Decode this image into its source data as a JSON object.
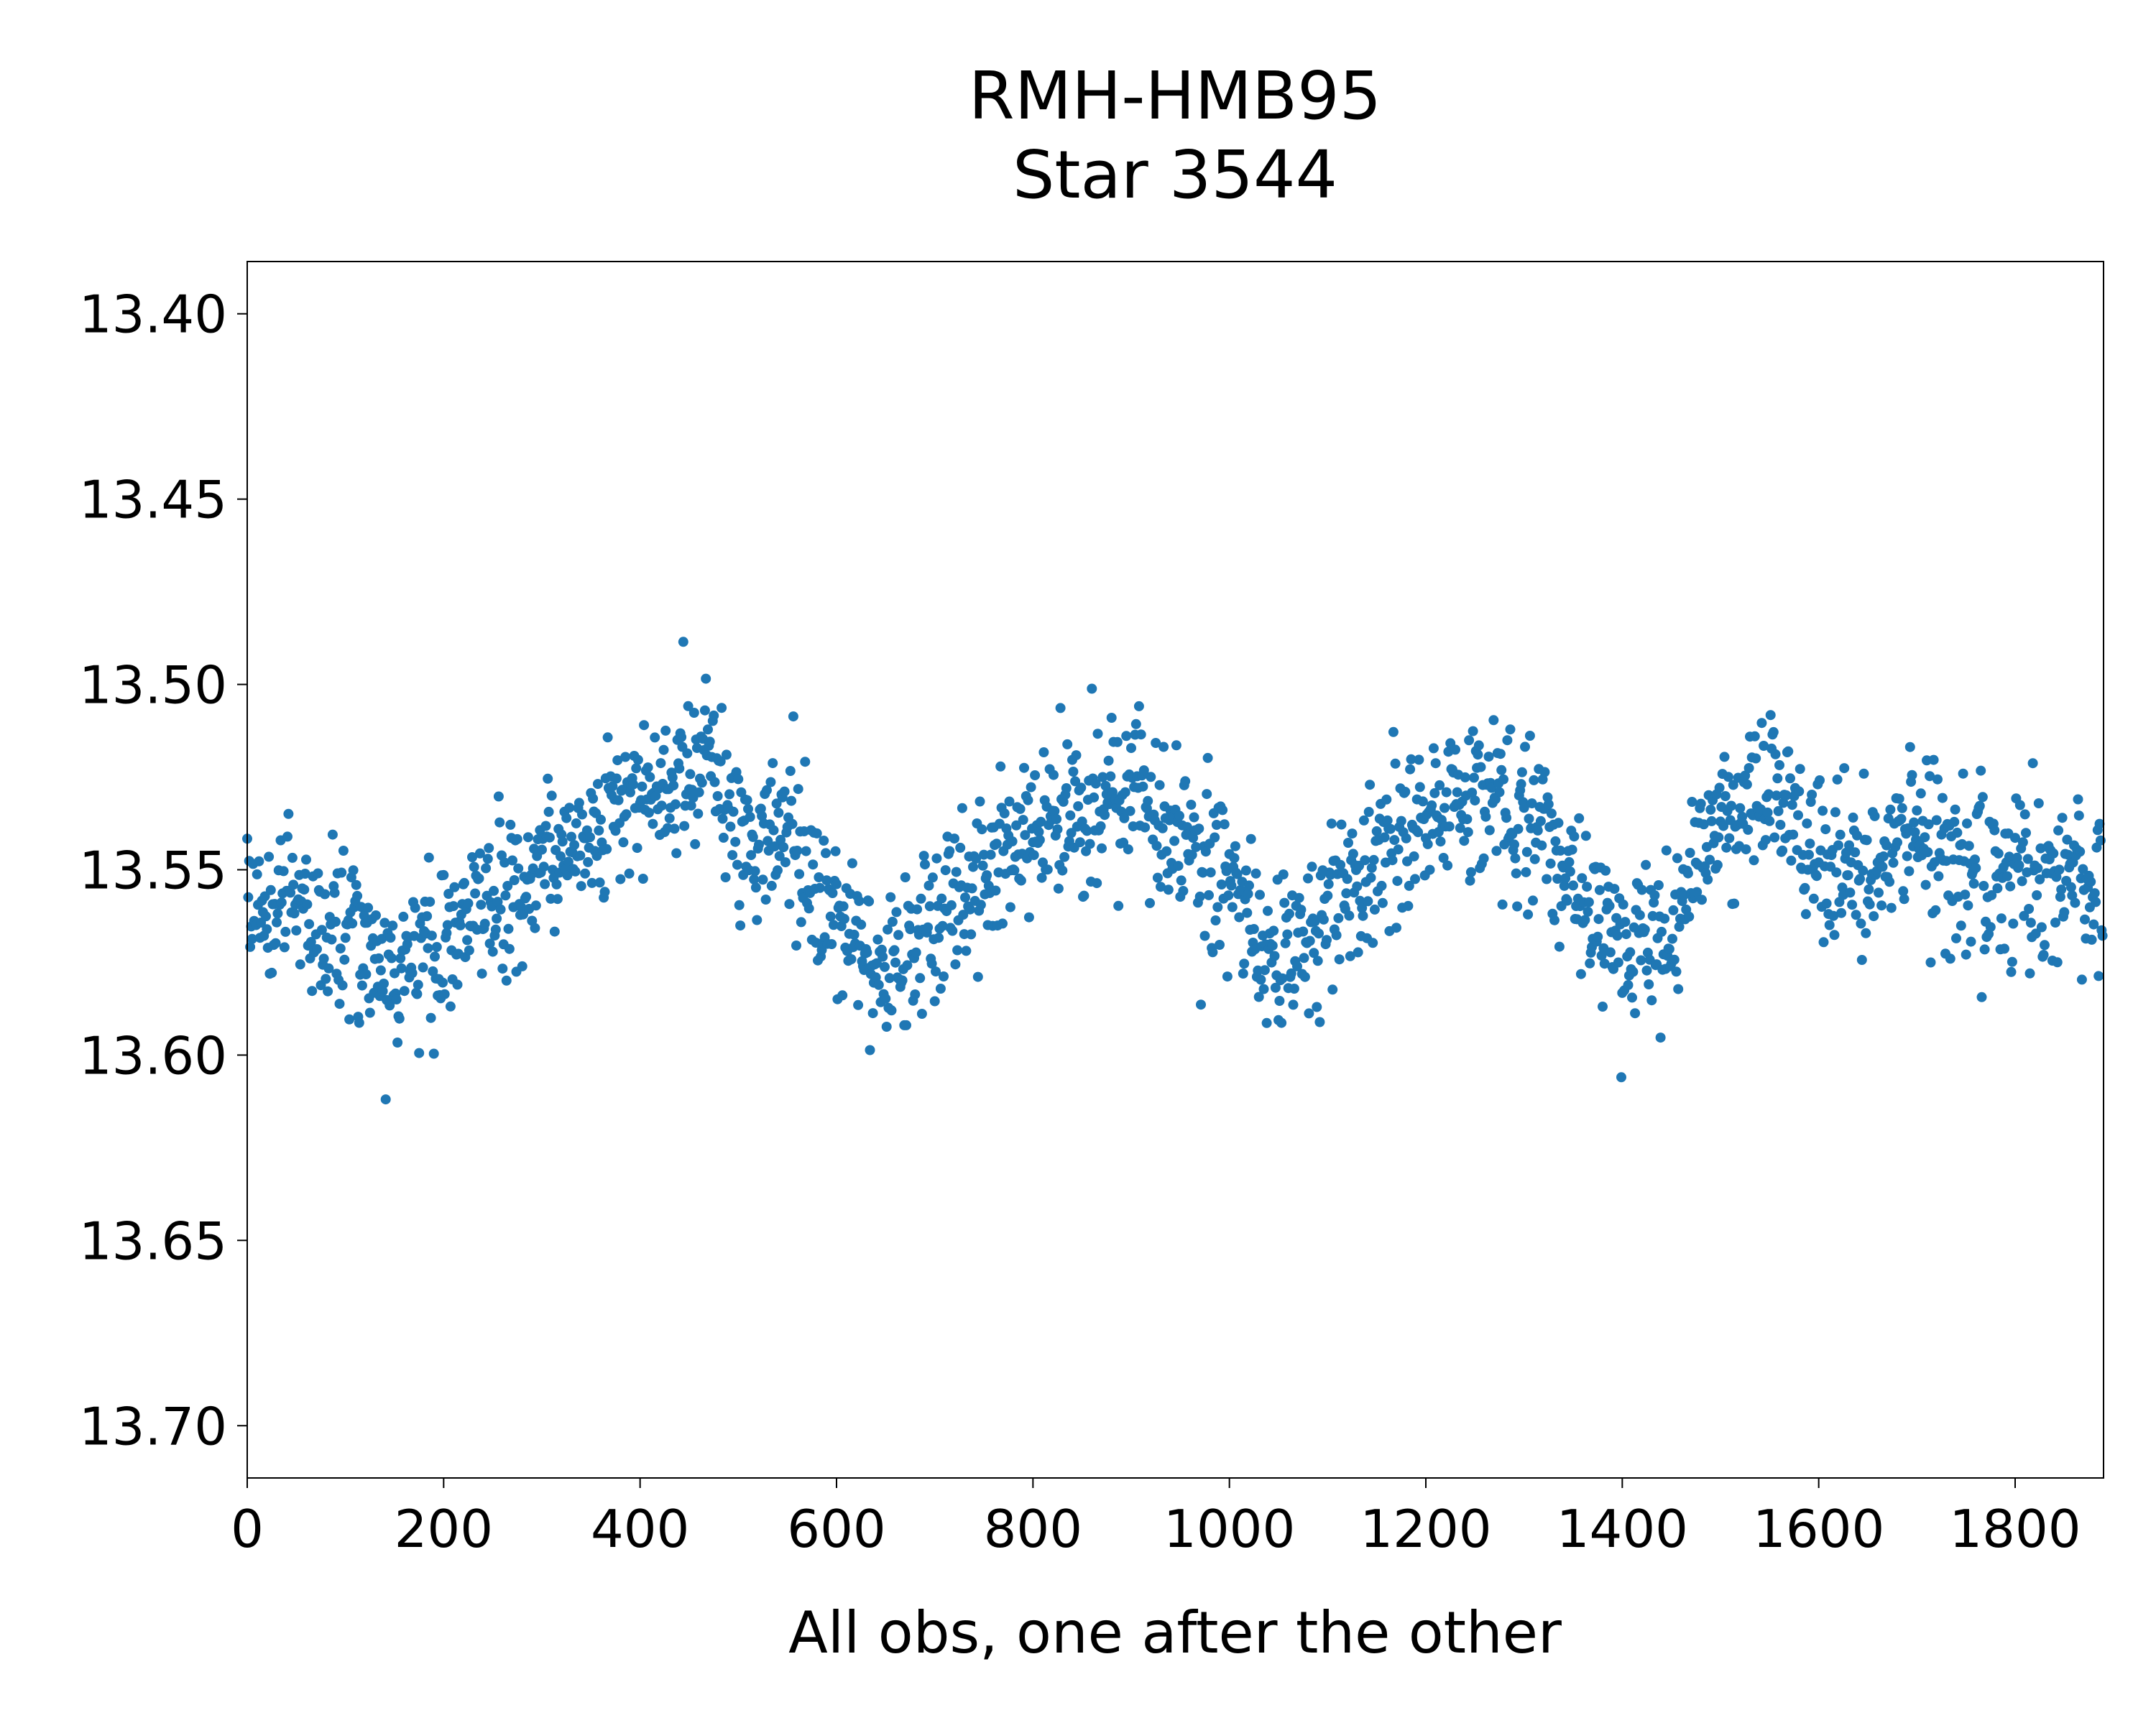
{
  "chart_data": {
    "type": "scatter",
    "title_lines": [
      "RMH-HMB95",
      "Star 3544"
    ],
    "xlabel": "All obs, one after the other",
    "ylabel": "",
    "xlim": [
      0,
      1890
    ],
    "ylim": [
      13.7141,
      13.3859
    ],
    "y_inverted": true,
    "x_ticks": [
      "0",
      "200",
      "400",
      "600",
      "800",
      "1000",
      "1200",
      "1400",
      "1600",
      "1800"
    ],
    "y_ticks": [
      "13.40",
      "13.45",
      "13.50",
      "13.55",
      "13.60",
      "13.65",
      "13.70"
    ],
    "grid": false,
    "marker_color": "#1f77b4",
    "n_points": 1890,
    "trend": [
      [
        0,
        13.558
      ],
      [
        50,
        13.562
      ],
      [
        100,
        13.568
      ],
      [
        150,
        13.575
      ],
      [
        200,
        13.57
      ],
      [
        250,
        13.56
      ],
      [
        300,
        13.55
      ],
      [
        350,
        13.538
      ],
      [
        400,
        13.532
      ],
      [
        440,
        13.528
      ],
      [
        470,
        13.52
      ],
      [
        500,
        13.538
      ],
      [
        560,
        13.545
      ],
      [
        600,
        13.565
      ],
      [
        650,
        13.578
      ],
      [
        700,
        13.565
      ],
      [
        750,
        13.552
      ],
      [
        800,
        13.54
      ],
      [
        850,
        13.532
      ],
      [
        900,
        13.53
      ],
      [
        950,
        13.54
      ],
      [
        1000,
        13.555
      ],
      [
        1050,
        13.575
      ],
      [
        1100,
        13.56
      ],
      [
        1150,
        13.545
      ],
      [
        1200,
        13.535
      ],
      [
        1250,
        13.528
      ],
      [
        1300,
        13.538
      ],
      [
        1350,
        13.552
      ],
      [
        1400,
        13.57
      ],
      [
        1450,
        13.566
      ],
      [
        1480,
        13.54
      ],
      [
        1550,
        13.528
      ],
      [
        1600,
        13.545
      ],
      [
        1650,
        13.555
      ],
      [
        1700,
        13.54
      ],
      [
        1750,
        13.548
      ],
      [
        1800,
        13.552
      ],
      [
        1850,
        13.552
      ],
      [
        1890,
        13.558
      ]
    ],
    "scatter_sd": 0.011
  }
}
